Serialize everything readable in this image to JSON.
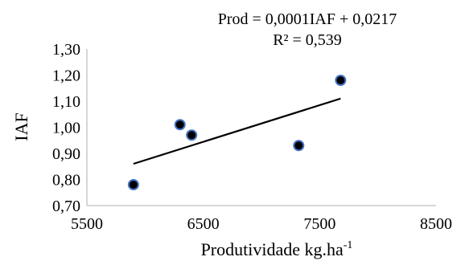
{
  "chart_data": {
    "type": "scatter",
    "title": "",
    "annotations": {
      "equation": "Prod = 0,0001IAF + 0,0217",
      "r2": "R² = 0,539"
    },
    "xlabel_base": "Produtividade kg.ha",
    "xlabel_sup": "-1",
    "ylabel": "IAF",
    "xlim": [
      5500,
      8500
    ],
    "ylim": [
      0.7,
      1.3
    ],
    "xticks": [
      5500,
      6500,
      7500,
      8500
    ],
    "xtick_labels": [
      "5500",
      "6500",
      "7500",
      "8500"
    ],
    "yticks": [
      0.7,
      0.8,
      0.9,
      1.0,
      1.1,
      1.2,
      1.3
    ],
    "ytick_labels": [
      "0,70",
      "0,80",
      "0,90",
      "1,00",
      "1,10",
      "1,20",
      "1,30"
    ],
    "points": [
      {
        "x": 5900,
        "y": 0.78
      },
      {
        "x": 6300,
        "y": 1.01
      },
      {
        "x": 6400,
        "y": 0.97
      },
      {
        "x": 7320,
        "y": 0.93
      },
      {
        "x": 7680,
        "y": 1.18
      }
    ],
    "trendline": {
      "x": [
        5900,
        7680
      ],
      "y": [
        0.86,
        1.11
      ]
    },
    "grid": false,
    "legend": "none",
    "colors": {
      "marker_fill": "#000000",
      "marker_edge": "#4472C4",
      "trendline": "#000000",
      "axis": "#bfbfbf"
    }
  }
}
